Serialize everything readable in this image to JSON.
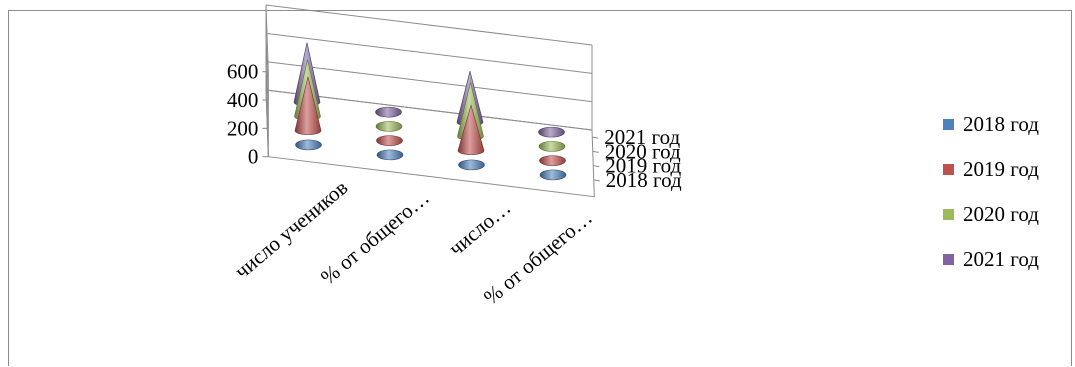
{
  "chart_data": {
    "type": "bar",
    "style": "3d-cone",
    "categories": [
      "число учеников",
      "% от общего…",
      "число…",
      "% от общего…"
    ],
    "depth_categories": [
      "2018 год",
      "2019 год",
      "2020 год",
      "2021 год"
    ],
    "y_ticks": [
      "0",
      "200",
      "400",
      "600"
    ],
    "ylim": [
      0,
      600
    ],
    "series": [
      {
        "name": "2018 год",
        "color": "#4f81bd",
        "values": [
          2,
          1,
          1,
          1
        ]
      },
      {
        "name": "2019 год",
        "color": "#c0504d",
        "values": [
          380,
          1,
          320,
          1
        ]
      },
      {
        "name": "2020 год",
        "color": "#9bbb59",
        "values": [
          400,
          1,
          380,
          1
        ]
      },
      {
        "name": "2021 год",
        "color": "#8064a2",
        "values": [
          420,
          1,
          360,
          1
        ]
      }
    ],
    "legend_position": "right",
    "grid": true
  }
}
